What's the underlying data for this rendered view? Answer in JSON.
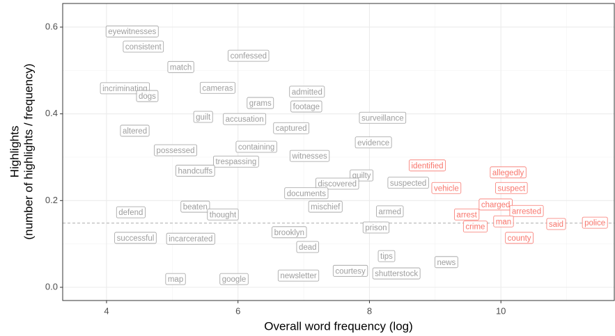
{
  "chart_data": {
    "type": "scatter",
    "xlabel": "Overall word frequency (log)",
    "ylabel": [
      "Highlights",
      "(number of highlights / frequency)"
    ],
    "xlim": [
      3.333,
      11.725
    ],
    "ylim": [
      -0.0305,
      0.6545
    ],
    "xticks": [
      4,
      6,
      8,
      10
    ],
    "yticks": [
      {
        "value": 0,
        "label": "0.0"
      },
      0.2,
      0.4,
      0.6
    ],
    "x_minor_ticks": [
      5,
      7,
      9,
      11
    ],
    "y_minor_ticks": [
      0.1,
      0.3,
      0.5
    ],
    "grid": true,
    "hline": 0.148,
    "series": [
      {
        "color": "#9e9e9e",
        "labels": [
          "eyewitnesses",
          "consistent",
          "match",
          "confessed",
          "incriminating",
          "dogs",
          "cameras",
          "grams",
          "admitted",
          "footage",
          "guilt",
          "accusation",
          "captured",
          "surveillance",
          "altered",
          "possessed",
          "containing",
          "evidence",
          "witnesses",
          "trespassing",
          "handcuffs",
          "guilty",
          "discovered",
          "suspected",
          "documents",
          "mischief",
          "defend",
          "beaten",
          "thought",
          "armed",
          "prison",
          "brooklyn",
          "successful",
          "incarcerated",
          "dead",
          "tips",
          "news",
          "courtesy",
          "shutterstock",
          "newsletter",
          "google",
          "map"
        ],
        "x": [
          4.39,
          4.56,
          5.13,
          6.16,
          4.28,
          4.62,
          5.69,
          6.34,
          7.05,
          7.04,
          5.47,
          6.1,
          6.81,
          8.2,
          4.43,
          5.05,
          6.28,
          8.06,
          7.09,
          5.97,
          5.35,
          7.88,
          7.51,
          8.59,
          7.04,
          7.33,
          4.37,
          5.35,
          5.77,
          8.31,
          8.1,
          6.78,
          4.44,
          5.28,
          7.06,
          8.26,
          9.17,
          7.71,
          8.41,
          6.92,
          5.94,
          5.05
        ],
        "y": [
          0.59,
          0.555,
          0.508,
          0.534,
          0.459,
          0.441,
          0.46,
          0.425,
          0.451,
          0.417,
          0.393,
          0.388,
          0.367,
          0.391,
          0.361,
          0.316,
          0.324,
          0.334,
          0.303,
          0.29,
          0.269,
          0.258,
          0.239,
          0.241,
          0.217,
          0.186,
          0.173,
          0.186,
          0.168,
          0.175,
          0.138,
          0.127,
          0.114,
          0.112,
          0.093,
          0.072,
          0.058,
          0.038,
          0.032,
          0.027,
          0.019,
          0.019
        ]
      },
      {
        "color": "#f8766d",
        "labels": [
          "identified",
          "allegedly",
          "vehicle",
          "suspect",
          "charged",
          "arrested",
          "arrest",
          "man",
          "said",
          "police",
          "crime",
          "county"
        ],
        "x": [
          8.88,
          10.11,
          9.17,
          10.16,
          9.92,
          10.39,
          9.48,
          10.04,
          10.84,
          11.43,
          9.61,
          10.28
        ],
        "y": [
          0.281,
          0.265,
          0.229,
          0.229,
          0.191,
          0.176,
          0.168,
          0.152,
          0.146,
          0.149,
          0.14,
          0.114
        ]
      }
    ]
  }
}
